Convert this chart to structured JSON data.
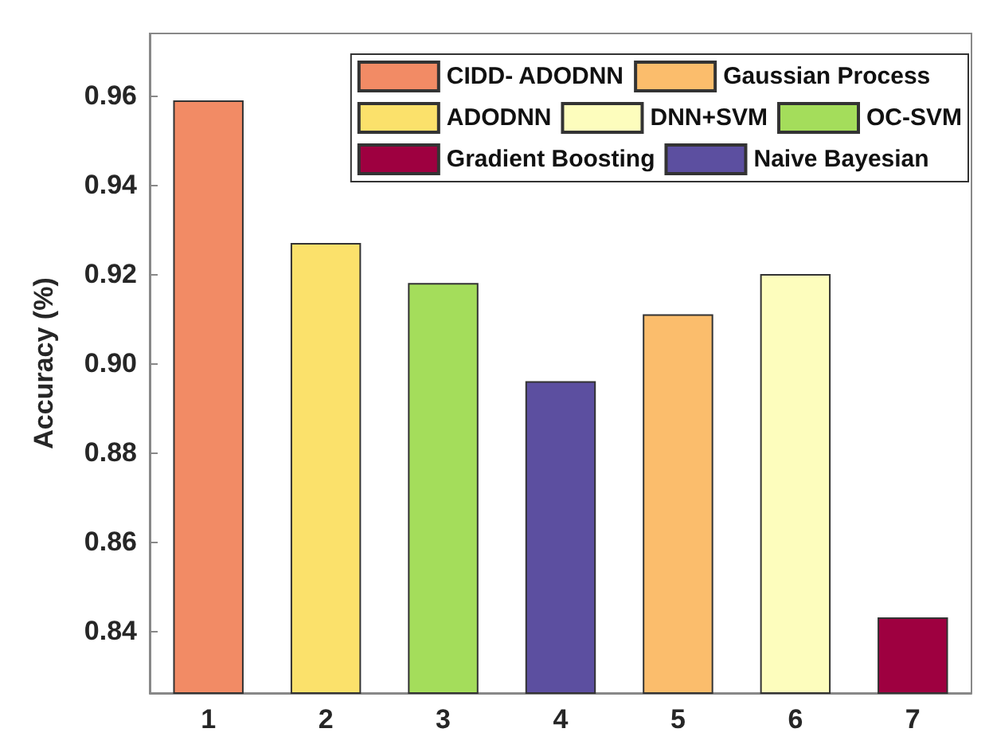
{
  "chart_data": {
    "type": "bar",
    "ylabel": "Accuracy (%)",
    "categories": [
      "1",
      "2",
      "3",
      "4",
      "5",
      "6",
      "7"
    ],
    "series": [
      {
        "name": "CIDD- ADODNN",
        "color": "#f28b65",
        "values": [
          0.959,
          null,
          null,
          null,
          null,
          null,
          null
        ]
      },
      {
        "name": "ADODNN",
        "color": "#fbe16b",
        "values": [
          null,
          0.927,
          null,
          null,
          null,
          null,
          null
        ]
      },
      {
        "name": "OC-SVM",
        "color": "#a4dd5b",
        "values": [
          null,
          null,
          0.918,
          null,
          null,
          null,
          null
        ]
      },
      {
        "name": "Naive Bayesian",
        "color": "#5c4fa0",
        "values": [
          null,
          null,
          null,
          0.896,
          null,
          null,
          null
        ]
      },
      {
        "name": "Gaussian Process",
        "color": "#fbbd6c",
        "values": [
          null,
          null,
          null,
          null,
          0.911,
          null,
          null
        ]
      },
      {
        "name": "DNN+SVM",
        "color": "#fdfdbd",
        "values": [
          null,
          null,
          null,
          null,
          null,
          0.92,
          null
        ]
      },
      {
        "name": "Gradient Boosting",
        "color": "#9e0040",
        "values": [
          null,
          null,
          null,
          null,
          null,
          null,
          0.843
        ]
      }
    ],
    "stacked": true,
    "ylim": [
      0.826,
      0.974
    ],
    "yticks": [
      0.84,
      0.86,
      0.88,
      {
        "value": 0.9,
        "label": "0.90"
      },
      0.92,
      0.94,
      0.96
    ],
    "grid": false,
    "legend": "top right"
  }
}
